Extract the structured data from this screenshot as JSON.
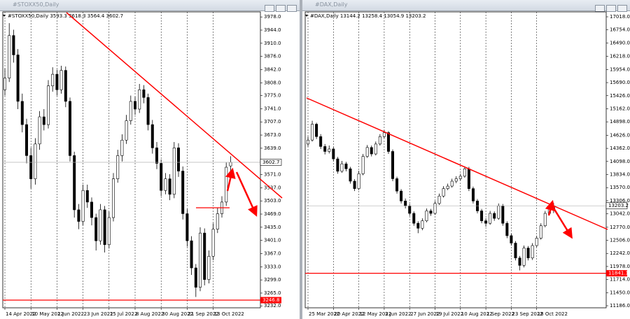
{
  "chart_data": [
    {
      "type": "candlestick",
      "title": "#STOXX50,Daily",
      "up_color": "#ffffff",
      "down_color": "#000000",
      "wick_color": "#000000",
      "grid": true,
      "ylim": [
        3227,
        3991
      ],
      "yticks": [
        {
          "value": 3978,
          "label": "3978.0"
        },
        {
          "value": 3944,
          "label": "3944.0"
        },
        {
          "value": 3910,
          "label": "3910.0"
        },
        {
          "value": 3876,
          "label": "3876.0"
        },
        {
          "value": 3842,
          "label": "3842.0"
        },
        {
          "value": 3808,
          "label": "3808.0"
        },
        {
          "value": 3775,
          "label": "3775.0"
        },
        {
          "value": 3741,
          "label": "3741.0"
        },
        {
          "value": 3707,
          "label": "3707.0"
        },
        {
          "value": 3673,
          "label": "3673.0"
        },
        {
          "value": 3639,
          "label": "3639.0"
        },
        {
          "value": 3571,
          "label": "3571.0"
        },
        {
          "value": 3537,
          "label": "3537.0"
        },
        {
          "value": 3503,
          "label": "3503.0"
        },
        {
          "value": 3469,
          "label": "3469.0"
        },
        {
          "value": 3435,
          "label": "3435.0"
        },
        {
          "value": 3401,
          "label": "3401.0"
        },
        {
          "value": 3367,
          "label": "3367.0"
        },
        {
          "value": 3333,
          "label": "3333.0"
        },
        {
          "value": 3299,
          "label": "3299.0"
        },
        {
          "value": 3265,
          "label": "3265.0"
        },
        {
          "value": 3232,
          "label": "3232.0"
        }
      ],
      "levels": [
        {
          "value": 3246.8,
          "color": "#ff0000"
        }
      ],
      "categories": [
        "14 Apr 2022",
        null,
        null,
        null,
        null,
        null,
        "10 May 2022",
        null,
        null,
        null,
        null,
        null,
        "1 Jun 2022",
        null,
        null,
        null,
        null,
        null,
        "23 Jun 2022",
        null,
        null,
        null,
        null,
        null,
        "15 Jul 2022",
        null,
        null,
        null,
        null,
        null,
        "8 Aug 2022",
        null,
        null,
        null,
        null,
        null,
        "30 Aug 2022",
        null,
        null,
        null,
        null,
        null,
        "21 Sep 2022",
        null,
        null,
        null,
        null,
        null,
        "13 Oct 2022",
        null,
        null,
        null,
        null
      ],
      "ohlc": [
        [
          3790,
          3845,
          3775,
          3820
        ],
        [
          3820,
          3962,
          3810,
          3930
        ],
        [
          3930,
          3945,
          3860,
          3880
        ],
        [
          3880,
          3895,
          3740,
          3760
        ],
        [
          3760,
          3780,
          3680,
          3700
        ],
        [
          3700,
          3715,
          3600,
          3620
        ],
        [
          3620,
          3640,
          3535,
          3560
        ],
        [
          3560,
          3665,
          3545,
          3650
        ],
        [
          3650,
          3735,
          3635,
          3720
        ],
        [
          3720,
          3740,
          3685,
          3700
        ],
        [
          3700,
          3815,
          3690,
          3800
        ],
        [
          3800,
          3848,
          3785,
          3830
        ],
        [
          3830,
          3842,
          3775,
          3790
        ],
        [
          3790,
          3852,
          3780,
          3840
        ],
        [
          3840,
          3850,
          3745,
          3760
        ],
        [
          3760,
          3770,
          3605,
          3620
        ],
        [
          3620,
          3630,
          3460,
          3480
        ],
        [
          3480,
          3495,
          3430,
          3450
        ],
        [
          3450,
          3545,
          3440,
          3530
        ],
        [
          3530,
          3545,
          3485,
          3500
        ],
        [
          3500,
          3512,
          3440,
          3460
        ],
        [
          3460,
          3470,
          3375,
          3400
        ],
        [
          3400,
          3495,
          3390,
          3480
        ],
        [
          3480,
          3490,
          3370,
          3390
        ],
        [
          3390,
          3475,
          3380,
          3460
        ],
        [
          3460,
          3575,
          3450,
          3560
        ],
        [
          3560,
          3635,
          3550,
          3620
        ],
        [
          3620,
          3675,
          3605,
          3660
        ],
        [
          3660,
          3725,
          3650,
          3710
        ],
        [
          3710,
          3775,
          3700,
          3760
        ],
        [
          3760,
          3772,
          3725,
          3740
        ],
        [
          3740,
          3805,
          3730,
          3790
        ],
        [
          3790,
          3802,
          3755,
          3770
        ],
        [
          3770,
          3780,
          3685,
          3700
        ],
        [
          3700,
          3712,
          3625,
          3640
        ],
        [
          3640,
          3655,
          3585,
          3600
        ],
        [
          3600,
          3610,
          3515,
          3530
        ],
        [
          3530,
          3575,
          3520,
          3560
        ],
        [
          3560,
          3572,
          3505,
          3520
        ],
        [
          3520,
          3655,
          3510,
          3640
        ],
        [
          3640,
          3652,
          3565,
          3580
        ],
        [
          3580,
          3592,
          3455,
          3470
        ],
        [
          3470,
          3482,
          3385,
          3400
        ],
        [
          3400,
          3412,
          3312,
          3330
        ],
        [
          3330,
          3340,
          3255,
          3280
        ],
        [
          3280,
          3435,
          3270,
          3420
        ],
        [
          3420,
          3432,
          3285,
          3300
        ],
        [
          3300,
          3375,
          3290,
          3360
        ],
        [
          3360,
          3445,
          3350,
          3430
        ],
        [
          3430,
          3485,
          3420,
          3470
        ],
        [
          3470,
          3515,
          3460,
          3500
        ],
        [
          3500,
          3602,
          3490,
          3590
        ],
        [
          3593.3,
          3618.3,
          3564.4,
          3602.7
        ]
      ]
    },
    {
      "type": "candlestick",
      "title": "#DAX,Daily",
      "up_color": "#ffffff",
      "down_color": "#000000",
      "wick_color": "#000000",
      "grid": true,
      "ylim": [
        11144,
        17117
      ],
      "yticks": [
        {
          "value": 17018,
          "label": "17018.0"
        },
        {
          "value": 16754,
          "label": "16754.0"
        },
        {
          "value": 16490,
          "label": "16490.0"
        },
        {
          "value": 16218,
          "label": "16218.0"
        },
        {
          "value": 15954,
          "label": "15954.0"
        },
        {
          "value": 15690,
          "label": "15690.0"
        },
        {
          "value": 15426,
          "label": "15426.0"
        },
        {
          "value": 15162,
          "label": "15162.0"
        },
        {
          "value": 14898,
          "label": "14898.0"
        },
        {
          "value": 14626,
          "label": "14626.0"
        },
        {
          "value": 14362,
          "label": "14362.0"
        },
        {
          "value": 14098,
          "label": "14098.0"
        },
        {
          "value": 13834,
          "label": "13834.0"
        },
        {
          "value": 13570,
          "label": "13570.0"
        },
        {
          "value": 13306,
          "label": "13306.0"
        },
        {
          "value": 13042,
          "label": "13042.0"
        },
        {
          "value": 12770,
          "label": "12770.0"
        },
        {
          "value": 12506,
          "label": "12506.0"
        },
        {
          "value": 12242,
          "label": "12242.0"
        },
        {
          "value": 11978,
          "label": "11978.0"
        },
        {
          "value": 11714,
          "label": "11714.0"
        },
        {
          "value": 11450,
          "label": "11450.0"
        },
        {
          "value": 11186,
          "label": "11186.0"
        }
      ],
      "levels": [
        {
          "value": 11841.1,
          "color": "#ff0000"
        }
      ],
      "categories": [
        "25 Mar 2022",
        null,
        null,
        null,
        null,
        null,
        "20 Apr 2022",
        null,
        null,
        null,
        null,
        null,
        "12 May 2022",
        null,
        null,
        null,
        null,
        null,
        "3 Jun 2022",
        null,
        null,
        null,
        null,
        null,
        "27 Jun 2022",
        null,
        null,
        null,
        null,
        null,
        "19 Jul 2022",
        null,
        null,
        null,
        null,
        null,
        "10 Aug 2022",
        null,
        null,
        null,
        null,
        null,
        "1 Sep 2022",
        null,
        null,
        null,
        null,
        null,
        "23 Sep 2022",
        null,
        null,
        null,
        null,
        null,
        "18 Oct 2022",
        null,
        null,
        null,
        null
      ],
      "ohlc": [
        [
          14450,
          14600,
          14400,
          14530
        ],
        [
          14530,
          14920,
          14500,
          14850
        ],
        [
          14850,
          14880,
          14550,
          14600
        ],
        [
          14600,
          14650,
          14350,
          14400
        ],
        [
          14400,
          14450,
          14240,
          14300
        ],
        [
          14300,
          14420,
          14260,
          14350
        ],
        [
          14350,
          14390,
          14100,
          14150
        ],
        [
          14150,
          14190,
          13850,
          13900
        ],
        [
          13900,
          14110,
          13870,
          14050
        ],
        [
          14050,
          14090,
          13900,
          13950
        ],
        [
          13950,
          13990,
          13650,
          13700
        ],
        [
          13700,
          13740,
          13500,
          13550
        ],
        [
          13550,
          13910,
          13520,
          13850
        ],
        [
          13850,
          14250,
          13820,
          14200
        ],
        [
          14200,
          14430,
          14170,
          14380
        ],
        [
          14380,
          14420,
          14200,
          14250
        ],
        [
          14250,
          14500,
          14220,
          14450
        ],
        [
          14450,
          14650,
          14420,
          14600
        ],
        [
          14600,
          14730,
          14570,
          14680
        ],
        [
          14680,
          14710,
          14250,
          14300
        ],
        [
          14300,
          14340,
          13700,
          13750
        ],
        [
          13750,
          13790,
          13450,
          13500
        ],
        [
          13500,
          13540,
          13250,
          13300
        ],
        [
          13300,
          13350,
          13150,
          13200
        ],
        [
          13200,
          13240,
          13000,
          13050
        ],
        [
          13050,
          13090,
          12800,
          12850
        ],
        [
          12850,
          12890,
          12650,
          12750
        ],
        [
          12750,
          12950,
          12710,
          12900
        ],
        [
          12900,
          13150,
          12870,
          13100
        ],
        [
          13100,
          13140,
          13000,
          13050
        ],
        [
          13050,
          13300,
          13020,
          13250
        ],
        [
          13250,
          13450,
          13220,
          13400
        ],
        [
          13400,
          13600,
          13370,
          13550
        ],
        [
          13550,
          13650,
          13520,
          13600
        ],
        [
          13600,
          13750,
          13570,
          13700
        ],
        [
          13700,
          13800,
          13660,
          13750
        ],
        [
          13750,
          13850,
          13710,
          13800
        ],
        [
          13800,
          14000,
          13770,
          13950
        ],
        [
          13950,
          13990,
          13500,
          13550
        ],
        [
          13550,
          13590,
          13250,
          13300
        ],
        [
          13300,
          13340,
          13050,
          13100
        ],
        [
          13100,
          13140,
          12850,
          12900
        ],
        [
          12900,
          12950,
          12780,
          12850
        ],
        [
          12850,
          13100,
          12820,
          13050
        ],
        [
          13050,
          13090,
          12900,
          12950
        ],
        [
          12950,
          13250,
          12920,
          13200
        ],
        [
          13200,
          13240,
          12800,
          12850
        ],
        [
          12850,
          12890,
          12550,
          12600
        ],
        [
          12600,
          12640,
          12400,
          12450
        ],
        [
          12450,
          12490,
          12100,
          12150
        ],
        [
          12150,
          12190,
          11900,
          12000
        ],
        [
          12000,
          12400,
          11960,
          12350
        ],
        [
          12350,
          12390,
          12100,
          12150
        ],
        [
          12150,
          12450,
          12110,
          12400
        ],
        [
          12400,
          12600,
          12370,
          12550
        ],
        [
          12550,
          12850,
          12520,
          12800
        ],
        [
          12800,
          13100,
          12770,
          13050
        ],
        [
          13050,
          13200,
          13010,
          13150
        ],
        [
          13144.2,
          13258.4,
          13054.9,
          13203.2
        ]
      ]
    }
  ]
}
